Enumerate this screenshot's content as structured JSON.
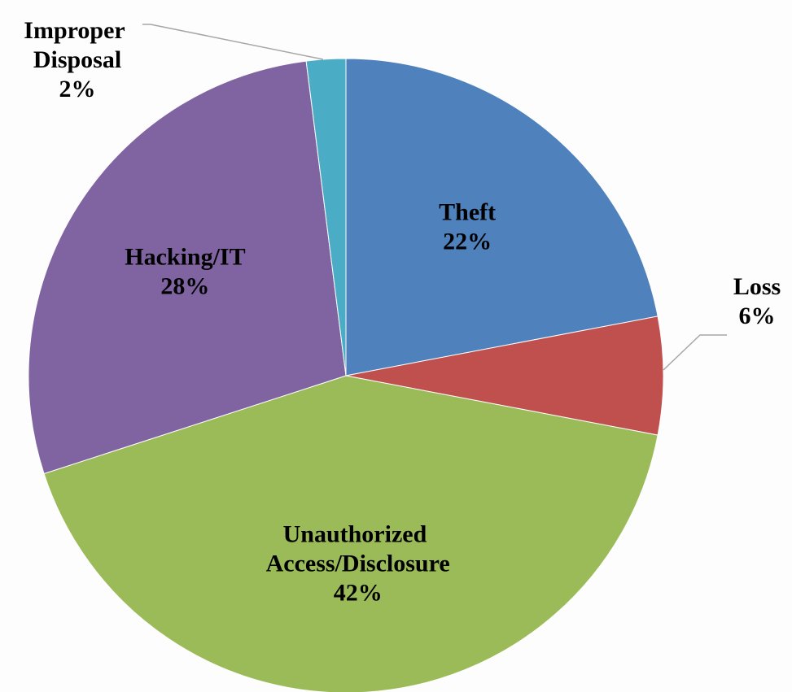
{
  "chart_data": {
    "type": "pie",
    "categories": [
      "Theft",
      "Loss",
      "Unauthorized Access/Disclosure",
      "Hacking/IT",
      "Improper Disposal"
    ],
    "values": [
      22,
      6,
      42,
      28,
      2
    ],
    "value_labels": [
      "22%",
      "6%",
      "42%",
      "28%",
      "2%"
    ],
    "colors": [
      "#4f81bd",
      "#c0504d",
      "#9bbb59",
      "#8064a2",
      "#4bacc6"
    ]
  }
}
